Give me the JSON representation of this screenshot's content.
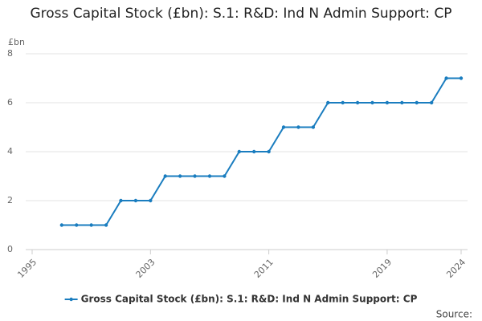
{
  "chart_data": {
    "type": "line",
    "title": "Gross Capital Stock (£bn): S.1: R&D: Ind N Admin Support: CP",
    "y_label": "£bn",
    "x": [
      1997,
      1998,
      1999,
      2000,
      2001,
      2002,
      2003,
      2004,
      2005,
      2006,
      2007,
      2008,
      2009,
      2010,
      2011,
      2012,
      2013,
      2014,
      2015,
      2016,
      2017,
      2018,
      2019,
      2020,
      2021,
      2022,
      2023,
      2024
    ],
    "series": [
      {
        "name": "Gross Capital Stock (£bn): S.1: R&D: Ind N Admin Support: CP",
        "color": "#1a7dbf",
        "values": [
          1,
          1,
          1,
          1,
          2,
          2,
          2,
          3,
          3,
          3,
          3,
          3,
          4,
          4,
          4,
          5,
          5,
          5,
          6,
          6,
          6,
          6,
          6,
          6,
          6,
          6,
          7,
          7
        ]
      }
    ],
    "xlim": [
      1995,
      2024
    ],
    "xticks": [
      1995,
      2003,
      2011,
      2019,
      2024
    ],
    "ylim": [
      0,
      8
    ],
    "yticks": [
      0,
      2,
      4,
      6,
      8
    ],
    "grid": true,
    "legend": "bottom",
    "source": "Source:"
  }
}
